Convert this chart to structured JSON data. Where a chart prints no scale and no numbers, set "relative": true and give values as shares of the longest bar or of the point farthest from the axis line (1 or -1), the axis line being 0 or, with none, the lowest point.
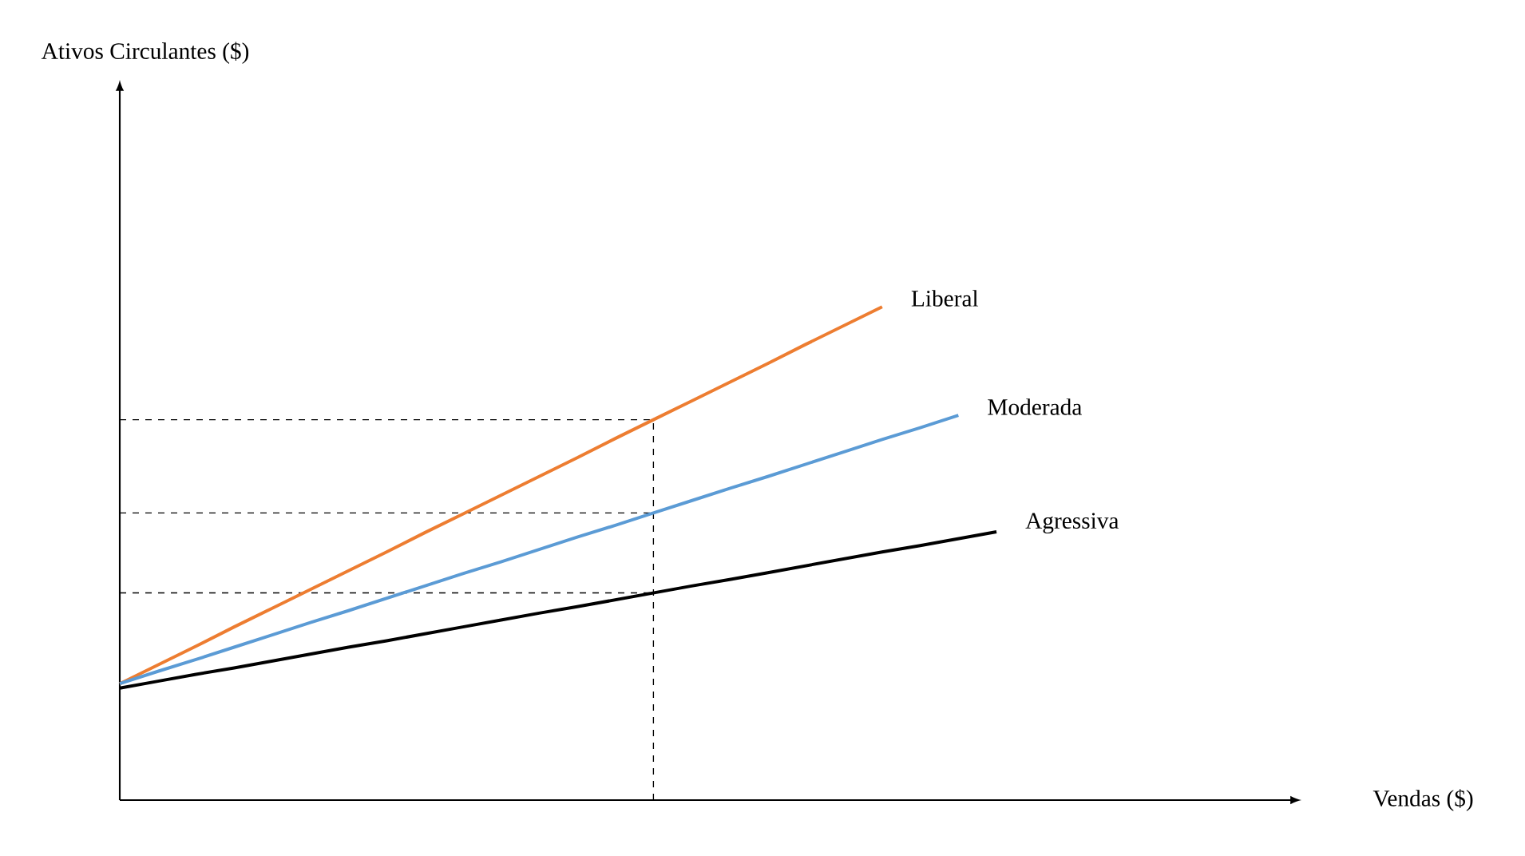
{
  "chart_data": {
    "type": "line",
    "relative": true,
    "xlabel": "Vendas ($)",
    "annotations": [
      "Ativos Circulantes ($)"
    ],
    "tick_labels": false,
    "categories": [
      null,
      null,
      null,
      null,
      null,
      null,
      null,
      null,
      null,
      null,
      null,
      null,
      null,
      null,
      null,
      null,
      null,
      null,
      null,
      null,
      null,
      null,
      null,
      null,
      null,
      null,
      null,
      null,
      null,
      null,
      null,
      null
    ],
    "series": [
      {
        "name": "Liberal",
        "color": "#ed7d31",
        "values": [
          0.236,
          0.274,
          0.312,
          0.351,
          0.389,
          0.427,
          0.465,
          0.503,
          0.542,
          0.58,
          0.618,
          0.656,
          0.694,
          0.733,
          0.771,
          0.809,
          0.847,
          0.885,
          0.924,
          0.962,
          1,
          null,
          null,
          null,
          null,
          null,
          null,
          null,
          null,
          null,
          null,
          null
        ]
      },
      {
        "name": "Moderada",
        "color": "#5b9bd5",
        "values": [
          0.236,
          0.261,
          0.285,
          0.31,
          0.335,
          0.36,
          0.384,
          0.409,
          0.434,
          0.459,
          0.483,
          0.508,
          0.533,
          0.557,
          0.582,
          0.607,
          0.632,
          0.656,
          0.681,
          0.706,
          0.731,
          0.755,
          0.78,
          null,
          null,
          null,
          null,
          null,
          null,
          null,
          null,
          null
        ]
      },
      {
        "name": "Agressiva",
        "color": "#000000",
        "values": [
          0.227,
          0.241,
          0.255,
          0.268,
          0.282,
          0.296,
          0.31,
          0.323,
          0.337,
          0.351,
          0.365,
          0.379,
          0.392,
          0.406,
          0.42,
          0.434,
          0.447,
          0.461,
          0.475,
          0.489,
          0.503,
          0.516,
          0.53,
          0.544,
          null,
          null,
          null,
          null,
          null,
          null,
          null,
          null
        ]
      }
    ],
    "ref_lines": [
      {
        "axis": "y",
        "value": 0.771,
        "line_style": "dashed"
      },
      {
        "axis": "y",
        "value": 0.582,
        "line_style": "dashed"
      },
      {
        "axis": "y",
        "value": 0.42,
        "line_style": "dashed"
      }
    ]
  }
}
